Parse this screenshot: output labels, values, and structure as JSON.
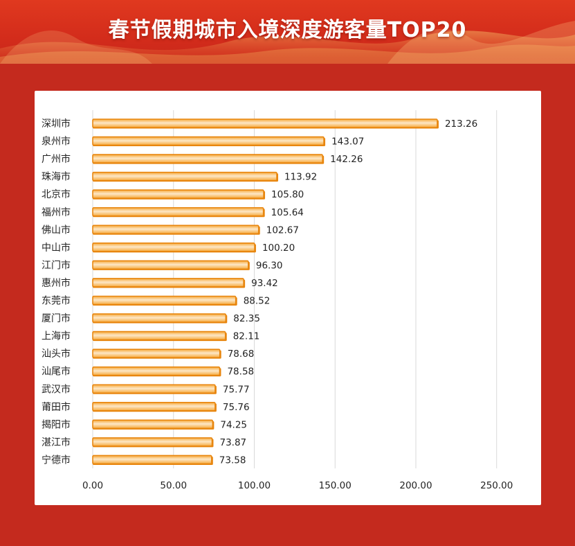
{
  "header": {
    "title": "春节假期城市入境深度游客量TOP20"
  },
  "colors": {
    "background": "#c42a1e",
    "bar_edge": "#e8860f",
    "bar_fill": "#f6a93a",
    "bar_highlight": "#fde7c6",
    "grid": "#d9d9d9"
  },
  "chart_data": {
    "type": "bar",
    "orientation": "horizontal",
    "title": "春节假期城市入境深度游客量TOP20",
    "xlabel": "",
    "ylabel": "",
    "xlim": [
      0,
      250
    ],
    "x_ticks": [
      "0.00",
      "50.00",
      "100.00",
      "150.00",
      "200.00",
      "250.00"
    ],
    "grid": true,
    "categories": [
      "深圳市",
      "泉州市",
      "广州市",
      "珠海市",
      "北京市",
      "福州市",
      "佛山市",
      "中山市",
      "江门市",
      "惠州市",
      "东莞市",
      "厦门市",
      "上海市",
      "汕头市",
      "汕尾市",
      "武汉市",
      "莆田市",
      "揭阳市",
      "湛江市",
      "宁德市"
    ],
    "values": [
      213.26,
      143.07,
      142.26,
      113.92,
      105.8,
      105.64,
      102.67,
      100.2,
      96.3,
      93.42,
      88.52,
      82.35,
      82.11,
      78.68,
      78.58,
      75.77,
      75.76,
      74.25,
      73.87,
      73.58
    ],
    "value_labels": [
      "213.26",
      "143.07",
      "142.26",
      "113.92",
      "105.80",
      "105.64",
      "102.67",
      "100.20",
      "96.30",
      "93.42",
      "88.52",
      "82.35",
      "82.11",
      "78.68",
      "78.58",
      "75.77",
      "75.76",
      "74.25",
      "73.87",
      "73.58"
    ]
  }
}
